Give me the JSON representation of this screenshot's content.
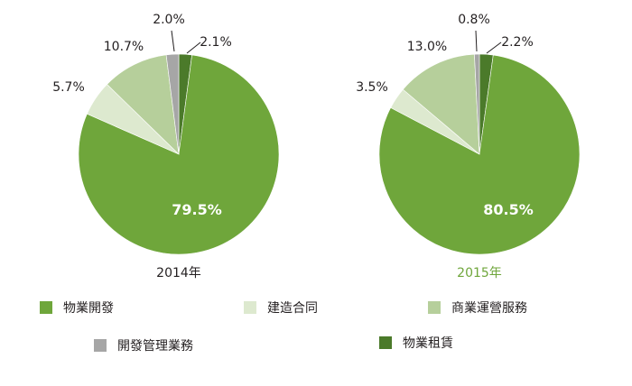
{
  "colors": {
    "property_development": "#6fa63b",
    "construction_contracts": "#dde9cf",
    "commercial_operations": "#b6cf9b",
    "development_management": "#a6a6a6",
    "property_leasing": "#4b7a2a"
  },
  "legend": [
    {
      "label": "物業開發",
      "color_key": "property_development"
    },
    {
      "label": "建造合同",
      "color_key": "construction_contracts"
    },
    {
      "label": "商業運營服務",
      "color_key": "commercial_operations"
    },
    {
      "label": "開發管理業務",
      "color_key": "development_management"
    },
    {
      "label": "物業租賃",
      "color_key": "property_leasing"
    }
  ],
  "chart_data": [
    {
      "type": "pie",
      "title": "2014年",
      "title_color": "#231f20",
      "slices": [
        {
          "label": "物業開發",
          "value": 79.5,
          "display": "79.5%",
          "color_key": "property_development"
        },
        {
          "label": "建造合同",
          "value": 5.7,
          "display": "5.7%",
          "color_key": "construction_contracts"
        },
        {
          "label": "商業運營服務",
          "value": 10.7,
          "display": "10.7%",
          "color_key": "commercial_operations"
        },
        {
          "label": "開發管理業務",
          "value": 2.0,
          "display": "2.0%",
          "color_key": "development_management"
        },
        {
          "label": "物業租賃",
          "value": 2.1,
          "display": "2.1%",
          "color_key": "property_leasing"
        }
      ]
    },
    {
      "type": "pie",
      "title": "2015年",
      "title_color": "#6fa63b",
      "slices": [
        {
          "label": "物業開發",
          "value": 80.5,
          "display": "80.5%",
          "color_key": "property_development"
        },
        {
          "label": "建造合同",
          "value": 3.5,
          "display": "3.5%",
          "color_key": "construction_contracts"
        },
        {
          "label": "商業運營服務",
          "value": 13.0,
          "display": "13.0%",
          "color_key": "commercial_operations"
        },
        {
          "label": "開發管理業務",
          "value": 0.8,
          "display": "0.8%",
          "color_key": "development_management"
        },
        {
          "label": "物業租賃",
          "value": 2.2,
          "display": "2.2%",
          "color_key": "property_leasing"
        }
      ]
    }
  ]
}
